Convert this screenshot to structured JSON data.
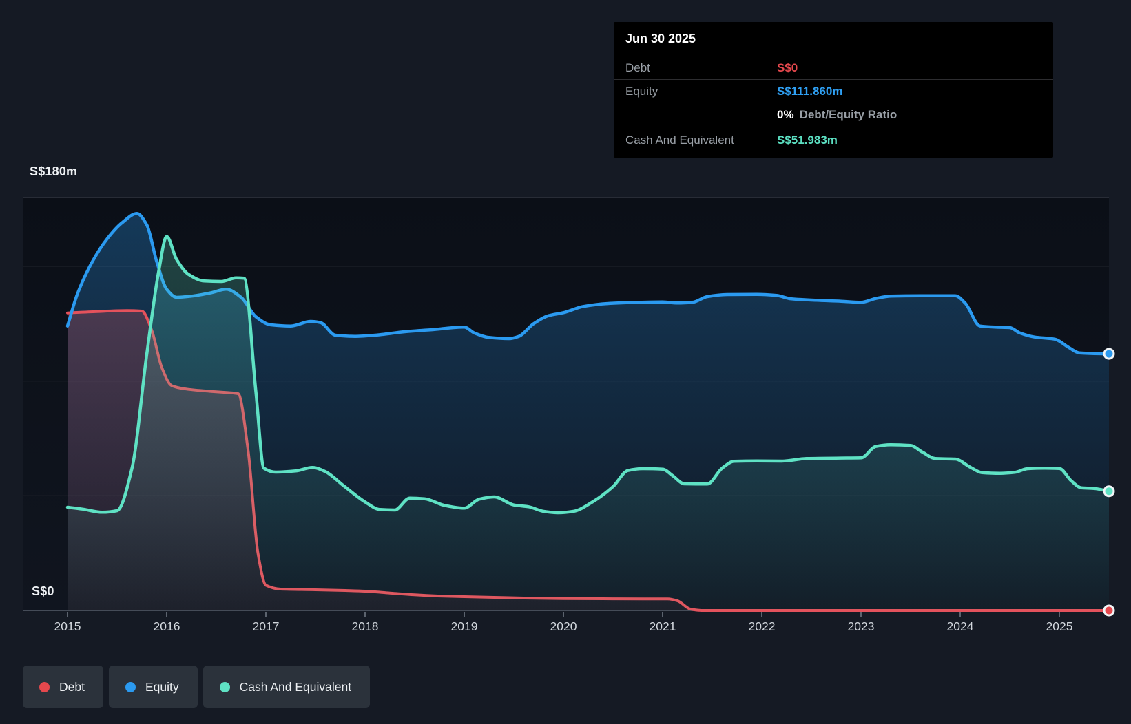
{
  "page": {
    "background": "#151a24"
  },
  "tooltip": {
    "date": "Jun 30 2025",
    "debt_label": "Debt",
    "debt_value": "S$0",
    "equity_label": "Equity",
    "equity_value": "S$111.860m",
    "ratio_value": "0%",
    "ratio_label": "Debt/Equity Ratio",
    "cash_label": "Cash And Equivalent",
    "cash_value": "S$51.983m"
  },
  "legend": {
    "items": [
      {
        "id": "debt",
        "label": "Debt",
        "color": "#e5484d"
      },
      {
        "id": "equity",
        "label": "Equity",
        "color": "#2b9af0"
      },
      {
        "id": "cash",
        "label": "Cash And Equivalent",
        "color": "#5fe2c4"
      }
    ]
  },
  "chart_data": {
    "type": "area",
    "x_axis": {
      "min": 2015,
      "max": 2025.5,
      "tick_labels": [
        "2015",
        "2016",
        "2017",
        "2018",
        "2019",
        "2020",
        "2021",
        "2022",
        "2023",
        "2024",
        "2025"
      ]
    },
    "y_axis": {
      "top_label": "S$180m",
      "zero_label": "S$0",
      "min": 0,
      "max": 180,
      "unit": "S$ millions",
      "gridlines": [
        180,
        150,
        100,
        50,
        0
      ]
    },
    "grid": "horizontal",
    "legend_position": "bottom-left",
    "series": [
      {
        "id": "equity",
        "name": "Equity",
        "color": "#2b9af0",
        "end_value_label": "S$111.860m",
        "points": [
          [
            2015.0,
            124
          ],
          [
            2015.1,
            138
          ],
          [
            2015.25,
            152
          ],
          [
            2015.4,
            162
          ],
          [
            2015.55,
            169
          ],
          [
            2015.7,
            173
          ],
          [
            2015.8,
            168
          ],
          [
            2015.9,
            152
          ],
          [
            2016.0,
            140
          ],
          [
            2016.1,
            136.5
          ],
          [
            2016.25,
            137
          ],
          [
            2016.45,
            138.5
          ],
          [
            2016.6,
            140
          ],
          [
            2016.75,
            136.5
          ],
          [
            2016.9,
            128
          ],
          [
            2017.05,
            124.5
          ],
          [
            2017.25,
            124
          ],
          [
            2017.45,
            126
          ],
          [
            2017.55,
            125.5
          ],
          [
            2017.7,
            120
          ],
          [
            2017.9,
            119.5
          ],
          [
            2018.1,
            120
          ],
          [
            2018.4,
            121.5
          ],
          [
            2018.7,
            122.5
          ],
          [
            2019.0,
            123.5
          ],
          [
            2019.1,
            121
          ],
          [
            2019.25,
            119
          ],
          [
            2019.45,
            118.5
          ],
          [
            2019.55,
            119.5
          ],
          [
            2019.7,
            125
          ],
          [
            2019.85,
            128.5
          ],
          [
            2020.0,
            129.8
          ],
          [
            2020.2,
            132.5
          ],
          [
            2020.45,
            133.8
          ],
          [
            2020.75,
            134.3
          ],
          [
            2021.0,
            134.5
          ],
          [
            2021.15,
            134
          ],
          [
            2021.3,
            134.3
          ],
          [
            2021.45,
            136.8
          ],
          [
            2021.65,
            137.7
          ],
          [
            2021.95,
            137.8
          ],
          [
            2022.15,
            137.3
          ],
          [
            2022.3,
            135.8
          ],
          [
            2022.55,
            135.2
          ],
          [
            2022.8,
            134.8
          ],
          [
            2023.0,
            134.3
          ],
          [
            2023.15,
            136
          ],
          [
            2023.3,
            137
          ],
          [
            2023.6,
            137.2
          ],
          [
            2023.95,
            137.2
          ],
          [
            2024.05,
            134
          ],
          [
            2024.2,
            124
          ],
          [
            2024.35,
            123.5
          ],
          [
            2024.5,
            123.3
          ],
          [
            2024.6,
            121
          ],
          [
            2024.75,
            119.2
          ],
          [
            2024.95,
            118.3
          ],
          [
            2025.1,
            114.5
          ],
          [
            2025.2,
            112.3
          ],
          [
            2025.35,
            112
          ],
          [
            2025.5,
            111.86
          ]
        ]
      },
      {
        "id": "debt",
        "name": "Debt",
        "color": "#e4525c",
        "end_value_label": "S$0",
        "points": [
          [
            2015.0,
            129.7
          ],
          [
            2015.3,
            130.3
          ],
          [
            2015.6,
            130.7
          ],
          [
            2015.75,
            130.5
          ],
          [
            2015.85,
            122
          ],
          [
            2015.95,
            106
          ],
          [
            2016.05,
            98
          ],
          [
            2016.2,
            96.5
          ],
          [
            2016.45,
            95.5
          ],
          [
            2016.6,
            95
          ],
          [
            2016.72,
            94.5
          ],
          [
            2016.82,
            70
          ],
          [
            2016.92,
            25
          ],
          [
            2017.0,
            11
          ],
          [
            2017.15,
            9.3
          ],
          [
            2017.5,
            9
          ],
          [
            2017.8,
            8.7
          ],
          [
            2018.0,
            8.4
          ],
          [
            2018.25,
            7.6
          ],
          [
            2018.5,
            6.8
          ],
          [
            2018.8,
            6.2
          ],
          [
            2019.0,
            6
          ],
          [
            2019.3,
            5.7
          ],
          [
            2019.6,
            5.4
          ],
          [
            2020.0,
            5.2
          ],
          [
            2020.4,
            5.1
          ],
          [
            2020.8,
            5
          ],
          [
            2021.05,
            5
          ],
          [
            2021.15,
            4.2
          ],
          [
            2021.28,
            0.6
          ],
          [
            2021.4,
            0
          ],
          [
            2022.0,
            0
          ],
          [
            2023.0,
            0
          ],
          [
            2024.0,
            0
          ],
          [
            2025.0,
            0
          ],
          [
            2025.5,
            0
          ]
        ]
      },
      {
        "id": "cash",
        "name": "Cash And Equivalent",
        "color": "#5fe2c4",
        "end_value_label": "S$51.983m",
        "points": [
          [
            2015.0,
            45
          ],
          [
            2015.15,
            44.2
          ],
          [
            2015.35,
            42.8
          ],
          [
            2015.5,
            43.5
          ],
          [
            2015.65,
            62
          ],
          [
            2015.8,
            112
          ],
          [
            2015.92,
            148
          ],
          [
            2016.0,
            163
          ],
          [
            2016.1,
            153
          ],
          [
            2016.22,
            146.5
          ],
          [
            2016.38,
            143.6
          ],
          [
            2016.55,
            143.4
          ],
          [
            2016.7,
            145
          ],
          [
            2016.78,
            144.8
          ],
          [
            2016.9,
            95
          ],
          [
            2016.98,
            62
          ],
          [
            2017.1,
            60.3
          ],
          [
            2017.3,
            60.8
          ],
          [
            2017.47,
            62.3
          ],
          [
            2017.6,
            60.5
          ],
          [
            2017.78,
            54.5
          ],
          [
            2018.0,
            47.3
          ],
          [
            2018.15,
            44
          ],
          [
            2018.3,
            43.8
          ],
          [
            2018.45,
            49
          ],
          [
            2018.6,
            48.7
          ],
          [
            2018.8,
            45.8
          ],
          [
            2019.0,
            44.6
          ],
          [
            2019.15,
            48.5
          ],
          [
            2019.3,
            49.5
          ],
          [
            2019.5,
            46
          ],
          [
            2019.65,
            45.2
          ],
          [
            2019.8,
            43.2
          ],
          [
            2019.95,
            42.6
          ],
          [
            2020.1,
            43.2
          ],
          [
            2020.3,
            47.5
          ],
          [
            2020.5,
            54
          ],
          [
            2020.65,
            61
          ],
          [
            2020.8,
            61.8
          ],
          [
            2021.0,
            61.6
          ],
          [
            2021.1,
            58.8
          ],
          [
            2021.22,
            55.2
          ],
          [
            2021.45,
            55.1
          ],
          [
            2021.6,
            62
          ],
          [
            2021.72,
            65
          ],
          [
            2021.95,
            65.2
          ],
          [
            2022.2,
            65.1
          ],
          [
            2022.45,
            66.2
          ],
          [
            2022.75,
            66.4
          ],
          [
            2023.0,
            66.5
          ],
          [
            2023.15,
            71.5
          ],
          [
            2023.3,
            72.2
          ],
          [
            2023.5,
            71.9
          ],
          [
            2023.62,
            69
          ],
          [
            2023.75,
            66.2
          ],
          [
            2023.95,
            66
          ],
          [
            2024.1,
            62.5
          ],
          [
            2024.22,
            60.1
          ],
          [
            2024.4,
            59.8
          ],
          [
            2024.55,
            60.2
          ],
          [
            2024.68,
            61.8
          ],
          [
            2024.85,
            62
          ],
          [
            2025.0,
            61.9
          ],
          [
            2025.12,
            56.5
          ],
          [
            2025.22,
            53.5
          ],
          [
            2025.35,
            53.2
          ],
          [
            2025.5,
            51.983
          ]
        ]
      }
    ],
    "end_markers": {
      "equity": 111.86,
      "cash": 51.983,
      "debt": 0
    }
  }
}
